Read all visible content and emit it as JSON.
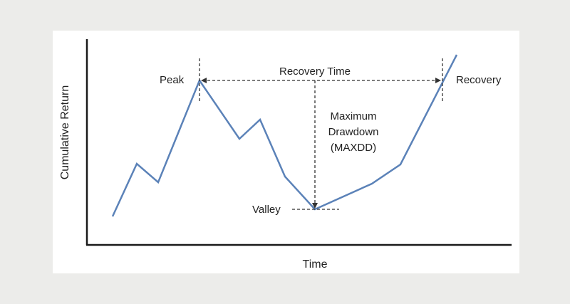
{
  "diagram": {
    "y_axis_label": "Cumulative Return",
    "x_axis_label": "Time",
    "peak_label": "Peak",
    "valley_label": "Valley",
    "recovery_label": "Recovery",
    "recovery_time_label": "Recovery Time",
    "drawdown_label_lines": [
      "Maximum",
      "Drawdown",
      "(MAXDD)"
    ],
    "colors": {
      "series_line": "#5b82b8",
      "axis": "#1a1a1a",
      "annotation": "#333333",
      "panel": "#ffffff",
      "background": "#ececea"
    }
  }
}
